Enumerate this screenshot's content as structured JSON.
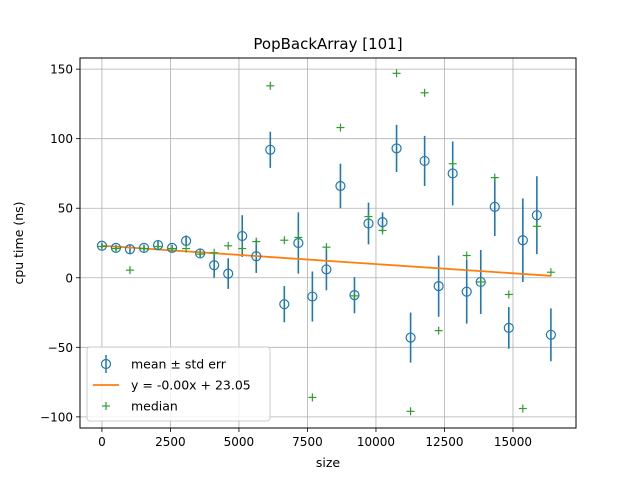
{
  "chart_data": {
    "type": "scatter",
    "title": "PopBackArray [101]",
    "xlabel": "size",
    "ylabel": "cpu time (ns)",
    "xlim": [
      -800,
      17300
    ],
    "ylim": [
      -108,
      158
    ],
    "xticks": [
      0,
      2500,
      5000,
      7500,
      10000,
      12500,
      15000
    ],
    "xtick_labels": [
      "0",
      "2500",
      "5000",
      "7500",
      "10000",
      "12500",
      "15000"
    ],
    "yticks": [
      -100,
      -50,
      0,
      50,
      100,
      150
    ],
    "ytick_labels": [
      "−100",
      "−50",
      "0",
      "50",
      "100",
      "150"
    ],
    "grid": true,
    "legend_position": "lower-left",
    "colors": {
      "mean": "#1f77b4",
      "fit": "#ff7f0e",
      "median": "#2ca02c"
    },
    "series": [
      {
        "name": "mean ± std err",
        "kind": "errorbar",
        "x": [
          0,
          512,
          1024,
          1536,
          2048,
          2560,
          3072,
          3584,
          4096,
          4608,
          5120,
          5632,
          6144,
          6656,
          7168,
          7680,
          8192,
          8704,
          9216,
          9728,
          10240,
          10752,
          11264,
          11776,
          12288,
          12800,
          13312,
          13824,
          14336,
          14848,
          15360,
          15872,
          16384
        ],
        "y": [
          23,
          21.5,
          20.5,
          21.5,
          23.5,
          21.5,
          26.5,
          17.5,
          9,
          3,
          30,
          15.5,
          92,
          -19,
          25,
          -13.5,
          6,
          66,
          -12.5,
          39,
          40,
          93,
          -43,
          84,
          -6,
          75,
          -10,
          -3,
          51,
          -36,
          27,
          45,
          -41
        ],
        "err": [
          2,
          2,
          3,
          2,
          3,
          2,
          4,
          3,
          9,
          11,
          15,
          12,
          13,
          13,
          22,
          18,
          15,
          16,
          13,
          15,
          7,
          17,
          18,
          18,
          22,
          23,
          23,
          23,
          21,
          15,
          30,
          28,
          19
        ]
      },
      {
        "name": "y = -0.00x + 23.05",
        "kind": "line",
        "x": [
          0,
          16384
        ],
        "y": [
          23.05,
          1.4
        ]
      },
      {
        "name": "median",
        "kind": "marker",
        "x": [
          0,
          512,
          1024,
          1536,
          2048,
          2560,
          3072,
          3584,
          4096,
          4608,
          5120,
          5632,
          6144,
          6656,
          7168,
          7680,
          8192,
          8704,
          9216,
          9728,
          10240,
          10752,
          11264,
          11776,
          12288,
          12800,
          13312,
          13824,
          14336,
          14848,
          15360,
          15872,
          16384
        ],
        "y": [
          22.5,
          21,
          5.5,
          21,
          22.5,
          21,
          21,
          17,
          18,
          23,
          21,
          26,
          138,
          27,
          29,
          -86,
          22,
          108,
          -13,
          44,
          34,
          147,
          -96,
          133,
          -38,
          82,
          16,
          -3,
          72,
          -12,
          -94,
          37,
          4
        ]
      }
    ]
  }
}
